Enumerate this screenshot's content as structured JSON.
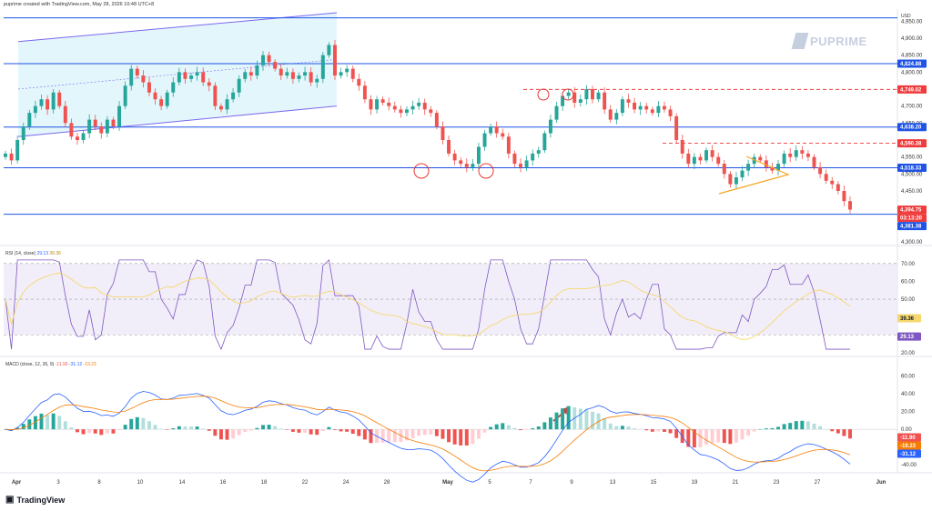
{
  "header": {
    "text": "puprime created with TradingView.com, May 28, 2026 10:48 UTC+8"
  },
  "watermark": {
    "brand": "PUPRIME"
  },
  "footer": {
    "logo_text": "TradingView",
    "logo_icon": "tradingview-logo-icon"
  },
  "price_axis": {
    "currency": "USD",
    "ticks": [
      "4,950.00",
      "4,900.00",
      "4,850.00",
      "4,800.00",
      "4,700.00",
      "4,650.00",
      "4,550.00",
      "4,500.00",
      "4,450.00",
      "4,300.00"
    ],
    "tick_values": [
      4950,
      4900,
      4850,
      4800,
      4700,
      4650,
      4550,
      4500,
      4450,
      4300
    ],
    "badges": [
      {
        "text": "4,824.88",
        "value": 4824.88,
        "color": "#1e53e5"
      },
      {
        "text": "4,749.02",
        "value": 4749.02,
        "color": "#ef3b3b"
      },
      {
        "text": "4,638.20",
        "value": 4638.2,
        "color": "#1e53e5"
      },
      {
        "text": "4,590.38",
        "value": 4590.38,
        "color": "#ef3b3b"
      },
      {
        "text": "4,518.33",
        "value": 4518.33,
        "color": "#1e53e5"
      },
      {
        "text": "4,394.75",
        "value": 4394.75,
        "color": "#ef3b3b"
      },
      {
        "text": "03:13:20",
        "value": 4383,
        "color": "#ef3b3b"
      },
      {
        "text": "4,381.38",
        "value": 4381.38,
        "color": "#1e53e5"
      }
    ]
  },
  "rsi": {
    "label": "RSI (14, close)",
    "value1": "29.13",
    "value2": "39.36",
    "ticks": [
      "70.00",
      "60.00",
      "50.00",
      "40.00",
      "30.00",
      "20.00"
    ],
    "badges": [
      {
        "text": "39.36",
        "color": "#f5d76e",
        "text_color": "#131722"
      },
      {
        "text": "29.13",
        "color": "#7e57c2",
        "text_color": "#ffffff"
      }
    ]
  },
  "macd": {
    "label": "MACD (close, 12, 26, 9)",
    "hist": "-11.90",
    "macd_val": "-31.12",
    "signal_val": "-19.23",
    "ticks": [
      "60.00",
      "40.00",
      "20.00",
      "0.00",
      "-20.00",
      "-40.00"
    ],
    "badges": [
      {
        "text": "-11.90",
        "color": "#ef5350",
        "text_color": "#ffffff"
      },
      {
        "text": "-19.23",
        "color": "#f57c00",
        "text_color": "#ffffff"
      },
      {
        "text": "-31.12",
        "color": "#2962ff",
        "text_color": "#ffffff"
      }
    ]
  },
  "time_axis": {
    "labels": [
      "Apr",
      "3",
      "8",
      "10",
      "14",
      "16",
      "18",
      "22",
      "24",
      "28",
      "May",
      "5",
      "7",
      "9",
      "13",
      "15",
      "19",
      "21",
      "23",
      "27",
      "Jun"
    ]
  },
  "chart_data": {
    "type": "candlestick",
    "symbol_currency": "USD",
    "price_range": [
      4300,
      4975
    ],
    "horizontal_levels": [
      {
        "value": 4960,
        "style": "solid",
        "color": "#1e53e5"
      },
      {
        "value": 4824.88,
        "style": "solid",
        "color": "#1e53e5"
      },
      {
        "value": 4749.02,
        "style": "dashed",
        "color": "#ef3b3b"
      },
      {
        "value": 4638.2,
        "style": "solid",
        "color": "#1e53e5"
      },
      {
        "value": 4590.38,
        "style": "dashed",
        "color": "#ef3b3b"
      },
      {
        "value": 4518.33,
        "style": "solid",
        "color": "#1e53e5"
      },
      {
        "value": 4381.38,
        "style": "solid",
        "color": "#1e53e5"
      }
    ],
    "close": [
      4560,
      4540,
      4600,
      4640,
      4680,
      4700,
      4720,
      4690,
      4740,
      4700,
      4650,
      4610,
      4600,
      4620,
      4660,
      4640,
      4620,
      4660,
      4640,
      4700,
      4760,
      4810,
      4790,
      4770,
      4740,
      4720,
      4700,
      4740,
      4770,
      4800,
      4780,
      4790,
      4800,
      4770,
      4760,
      4700,
      4690,
      4720,
      4740,
      4780,
      4800,
      4790,
      4820,
      4850,
      4830,
      4810,
      4790,
      4800,
      4780,
      4790,
      4800,
      4770,
      4780,
      4850,
      4880,
      4790,
      4800,
      4810,
      4780,
      4760,
      4720,
      4690,
      4720,
      4710,
      4700,
      4690,
      4680,
      4690,
      4700,
      4710,
      4690,
      4680,
      4640,
      4600,
      4560,
      4540,
      4530,
      4520,
      4530,
      4580,
      4620,
      4640,
      4620,
      4610,
      4560,
      4530,
      4520,
      4540,
      4560,
      4570,
      4620,
      4660,
      4700,
      4730,
      4740,
      4710,
      4720,
      4750,
      4720,
      4740,
      4690,
      4660,
      4680,
      4720,
      4710,
      4690,
      4700,
      4690,
      4680,
      4700,
      4690,
      4670,
      4600,
      4560,
      4530,
      4550,
      4540,
      4570,
      4550,
      4530,
      4500,
      4470,
      4490,
      4510,
      4530,
      4550,
      4540,
      4520,
      4510,
      4530,
      4560,
      4550,
      4570,
      4560,
      4550,
      4520,
      4500,
      4480,
      4470,
      4450,
      4420,
      4395
    ],
    "rsi_levels": [
      70,
      50,
      30
    ],
    "rsi_range": [
      20,
      75
    ],
    "macd_range": [
      -45,
      70
    ],
    "annotations": [
      {
        "type": "channel",
        "color": "#7b68ee"
      },
      {
        "type": "circle",
        "at": "support lows",
        "color": "#e53935"
      },
      {
        "type": "triangle",
        "color": "#f5a623"
      },
      {
        "type": "arrow",
        "color": "#e53935"
      }
    ]
  }
}
